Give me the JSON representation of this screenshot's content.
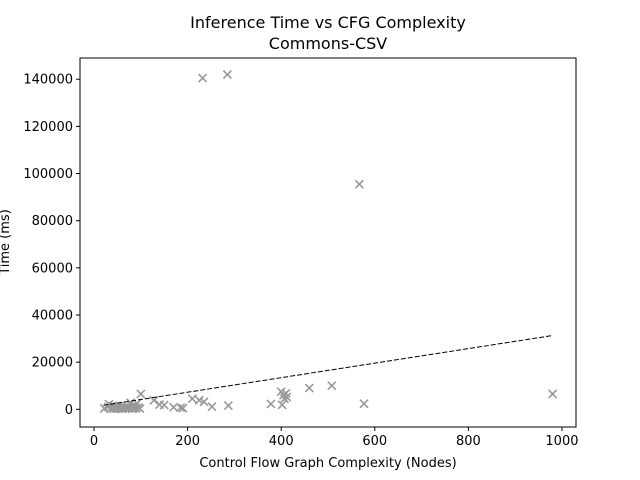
{
  "chart_data": {
    "type": "scatter",
    "title": "Inference Time vs CFG Complexity",
    "subtitle": "Commons-CSV",
    "xlabel": "Control Flow Graph Complexity (Nodes)",
    "ylabel": "Time (ms)",
    "xlim": [
      -30,
      1030
    ],
    "ylim": [
      -7500,
      149000
    ],
    "xticks": [
      0,
      200,
      400,
      600,
      800,
      1000
    ],
    "yticks": [
      0,
      20000,
      40000,
      60000,
      80000,
      100000,
      120000,
      140000
    ],
    "grid": false,
    "marker": "x",
    "marker_color": "#999999",
    "trend_line_color": "#000000",
    "trend_line": {
      "x": [
        20,
        980
      ],
      "y": [
        1700,
        31300
      ]
    },
    "points": [
      {
        "x": 22,
        "y": 400
      },
      {
        "x": 30,
        "y": 1000
      },
      {
        "x": 32,
        "y": 2200
      },
      {
        "x": 35,
        "y": 300
      },
      {
        "x": 38,
        "y": 600
      },
      {
        "x": 40,
        "y": 1500
      },
      {
        "x": 42,
        "y": 200
      },
      {
        "x": 45,
        "y": 800
      },
      {
        "x": 48,
        "y": 400
      },
      {
        "x": 50,
        "y": 1200
      },
      {
        "x": 52,
        "y": 300
      },
      {
        "x": 55,
        "y": 600
      },
      {
        "x": 58,
        "y": 1000
      },
      {
        "x": 60,
        "y": 200
      },
      {
        "x": 62,
        "y": 500
      },
      {
        "x": 65,
        "y": 900
      },
      {
        "x": 68,
        "y": 300
      },
      {
        "x": 70,
        "y": 1500
      },
      {
        "x": 72,
        "y": 600
      },
      {
        "x": 75,
        "y": 400
      },
      {
        "x": 78,
        "y": 2800
      },
      {
        "x": 80,
        "y": 1000
      },
      {
        "x": 82,
        "y": 200
      },
      {
        "x": 85,
        "y": 600
      },
      {
        "x": 88,
        "y": 1600
      },
      {
        "x": 90,
        "y": 400
      },
      {
        "x": 92,
        "y": 2500
      },
      {
        "x": 95,
        "y": 800
      },
      {
        "x": 100,
        "y": 6500
      },
      {
        "x": 98,
        "y": 300
      },
      {
        "x": 128,
        "y": 3800
      },
      {
        "x": 140,
        "y": 2000
      },
      {
        "x": 150,
        "y": 1800
      },
      {
        "x": 170,
        "y": 900
      },
      {
        "x": 185,
        "y": 700
      },
      {
        "x": 190,
        "y": 500
      },
      {
        "x": 210,
        "y": 4500
      },
      {
        "x": 225,
        "y": 3800
      },
      {
        "x": 232,
        "y": 140500
      },
      {
        "x": 235,
        "y": 3200
      },
      {
        "x": 252,
        "y": 1100
      },
      {
        "x": 285,
        "y": 142000
      },
      {
        "x": 287,
        "y": 1600
      },
      {
        "x": 378,
        "y": 2300
      },
      {
        "x": 400,
        "y": 7500
      },
      {
        "x": 402,
        "y": 1900
      },
      {
        "x": 405,
        "y": 6000
      },
      {
        "x": 407,
        "y": 4500
      },
      {
        "x": 410,
        "y": 6800
      },
      {
        "x": 412,
        "y": 5200
      },
      {
        "x": 460,
        "y": 9000
      },
      {
        "x": 508,
        "y": 10000
      },
      {
        "x": 567,
        "y": 95500
      },
      {
        "x": 577,
        "y": 2400
      },
      {
        "x": 980,
        "y": 6500
      }
    ]
  }
}
